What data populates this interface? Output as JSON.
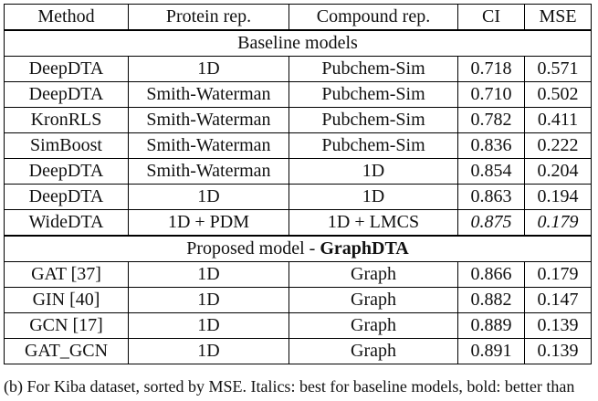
{
  "table": {
    "headers": [
      "Method",
      "Protein rep.",
      "Compound rep.",
      "CI",
      "MSE"
    ],
    "sections": [
      {
        "title": "Baseline models",
        "title_bold": "",
        "rows": [
          {
            "method": "DeepDTA",
            "protein": "1D",
            "compound": "Pubchem-Sim",
            "ci": "0.718",
            "mse": "0.571",
            "ci_style": "",
            "mse_style": ""
          },
          {
            "method": "DeepDTA",
            "protein": "Smith-Waterman",
            "compound": "Pubchem-Sim",
            "ci": "0.710",
            "mse": "0.502",
            "ci_style": "",
            "mse_style": ""
          },
          {
            "method": "KronRLS",
            "protein": "Smith-Waterman",
            "compound": "Pubchem-Sim",
            "ci": "0.782",
            "mse": "0.411",
            "ci_style": "",
            "mse_style": ""
          },
          {
            "method": "SimBoost",
            "protein": "Smith-Waterman",
            "compound": "Pubchem-Sim",
            "ci": "0.836",
            "mse": "0.222",
            "ci_style": "",
            "mse_style": ""
          },
          {
            "method": "DeepDTA",
            "protein": "Smith-Waterman",
            "compound": "1D",
            "ci": "0.854",
            "mse": "0.204",
            "ci_style": "",
            "mse_style": ""
          },
          {
            "method": "DeepDTA",
            "protein": "1D",
            "compound": "1D",
            "ci": "0.863",
            "mse": "0.194",
            "ci_style": "",
            "mse_style": ""
          },
          {
            "method": "WideDTA",
            "protein": "1D + PDM",
            "compound": "1D + LMCS",
            "ci": "0.875",
            "mse": "0.179",
            "ci_style": "italic",
            "mse_style": "italic"
          }
        ]
      },
      {
        "title": "Proposed model - ",
        "title_bold": "GraphDTA",
        "rows": [
          {
            "method": "GAT [37]",
            "protein": "1D",
            "compound": "Graph",
            "ci": "0.866",
            "mse": "0.179",
            "ci_style": "",
            "mse_style": ""
          },
          {
            "method": "GIN [40]",
            "protein": "1D",
            "compound": "Graph",
            "ci": "0.882",
            "mse": "0.147",
            "ci_style": "bold",
            "mse_style": "bold"
          },
          {
            "method": "GCN [17]",
            "protein": "1D",
            "compound": "Graph",
            "ci": "0.889",
            "mse": "0.139",
            "ci_style": "bold",
            "mse_style": "bold"
          },
          {
            "method": "GAT_GCN",
            "protein": "1D",
            "compound": "Graph",
            "ci": "0.891",
            "mse": "0.139",
            "ci_style": "bold",
            "mse_style": "bold"
          }
        ]
      }
    ]
  },
  "caption": "(b) For Kiba dataset, sorted by MSE. Italics: best for baseline models, bold: better than"
}
